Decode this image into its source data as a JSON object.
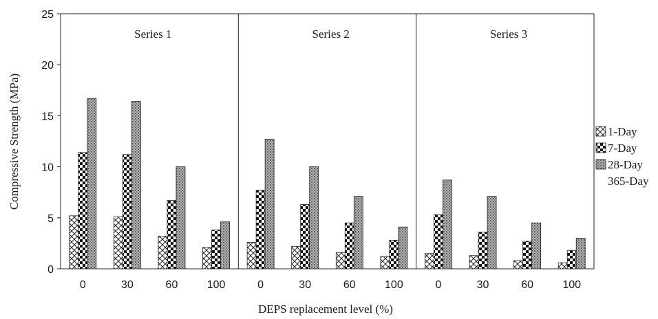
{
  "chart_data": {
    "type": "bar",
    "xlabel": "DEPS replacement level (%)",
    "ylabel": "Compressive Strength (MPa)",
    "ylim": [
      0,
      25
    ],
    "yticks": [
      "0",
      "5",
      "10",
      "15",
      "20",
      "25"
    ],
    "grid": false,
    "legend_position": "right",
    "groups": [
      {
        "label": "Series 1",
        "categories": [
          "0",
          "30",
          "60",
          "100"
        ]
      },
      {
        "label": "Series 2",
        "categories": [
          "0",
          "30",
          "60",
          "100"
        ]
      },
      {
        "label": "Series 3",
        "categories": [
          "0",
          "30",
          "60",
          "100"
        ]
      }
    ],
    "series": [
      {
        "name": "1-Day",
        "pattern": "crosshatch",
        "values": [
          5.2,
          5.1,
          3.2,
          2.1,
          2.6,
          2.2,
          1.6,
          1.2,
          1.5,
          1.3,
          0.8,
          0.6
        ]
      },
      {
        "name": "7-Day",
        "pattern": "checker",
        "values": [
          11.4,
          11.2,
          6.7,
          3.8,
          7.7,
          6.3,
          4.5,
          2.8,
          5.3,
          3.6,
          2.7,
          1.8
        ]
      },
      {
        "name": "28-Day",
        "pattern": "dots",
        "values": [
          16.7,
          16.4,
          10.0,
          4.6,
          12.7,
          10.0,
          7.1,
          4.1,
          8.7,
          7.1,
          4.5,
          3.0
        ]
      },
      {
        "name": "365-Day",
        "pattern": "none",
        "values": []
      }
    ]
  }
}
